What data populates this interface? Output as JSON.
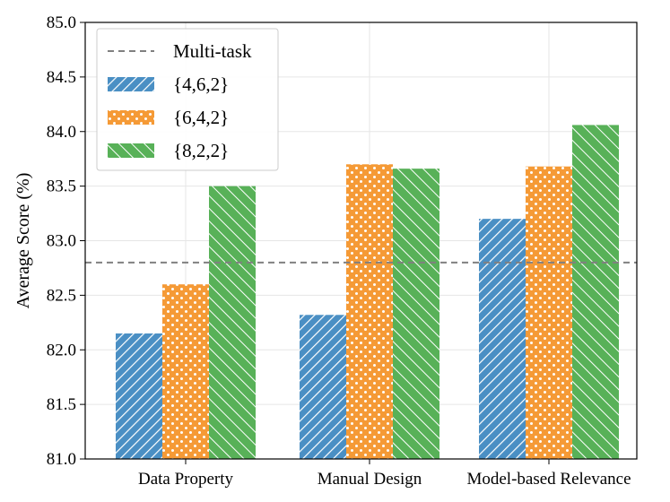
{
  "chart_data": {
    "type": "bar",
    "title": "",
    "xlabel": "",
    "ylabel": "Average Score (%)",
    "ylim": [
      81.0,
      85.0
    ],
    "yticks": [
      81.0,
      81.5,
      82.0,
      82.5,
      83.0,
      83.5,
      84.0,
      84.5,
      85.0
    ],
    "categories": [
      "Data Property",
      "Manual Design",
      "Model-based Relevance"
    ],
    "series": [
      {
        "name": "{4,6,2}",
        "color": "#4a8fc4",
        "pattern": "diagonal-up",
        "values": [
          82.15,
          82.32,
          83.2
        ]
      },
      {
        "name": "{6,4,2}",
        "color": "#f59a36",
        "pattern": "dots",
        "values": [
          82.6,
          83.7,
          83.68
        ]
      },
      {
        "name": "{8,2,2}",
        "color": "#58b158",
        "pattern": "diagonal-down",
        "values": [
          83.5,
          83.66,
          84.06
        ]
      }
    ],
    "reference_line": {
      "name": "Multi-task",
      "value": 82.8,
      "color": "#808080",
      "style": "dashed"
    },
    "grid": true,
    "legend_position": "top-left"
  }
}
